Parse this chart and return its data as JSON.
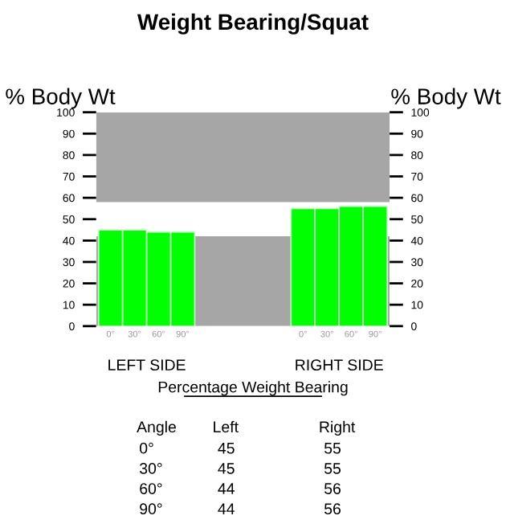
{
  "chart_data": {
    "type": "bar",
    "title": "Weight Bearing/Squat",
    "ylabel": "% Body Wt",
    "y2label": "% Body Wt",
    "categories": [
      "0°",
      "30°",
      "60°",
      "90°",
      null,
      null,
      null,
      null,
      "0°",
      "30°",
      "60°",
      "90°"
    ],
    "values": [
      45,
      45,
      44,
      44,
      null,
      null,
      null,
      null,
      55,
      55,
      56,
      56
    ],
    "color": "#00ff00",
    "ylim": [
      0,
      100
    ],
    "yticks": [
      0,
      10,
      20,
      30,
      40,
      50,
      60,
      70,
      80,
      90,
      100
    ],
    "y2lim": [
      0,
      100
    ],
    "y2ticks": [
      0,
      10,
      20,
      30,
      40,
      50,
      60,
      70,
      80,
      90,
      100
    ],
    "bands": [
      {
        "axis": "y",
        "from": 0,
        "to": 42,
        "color": "#a6a6a6"
      },
      {
        "axis": "y",
        "from": 58,
        "to": 100,
        "color": "#a6a6a6"
      }
    ],
    "grid": false,
    "annotations": [
      "LEFT SIDE",
      "RIGHT SIDE",
      "Percentage Weight Bearing",
      "Angle",
      "Left",
      "Right",
      "0°",
      "45",
      "55",
      "30°",
      "45",
      "55",
      "60°",
      "44",
      "56",
      "90°",
      "44",
      "56"
    ]
  }
}
